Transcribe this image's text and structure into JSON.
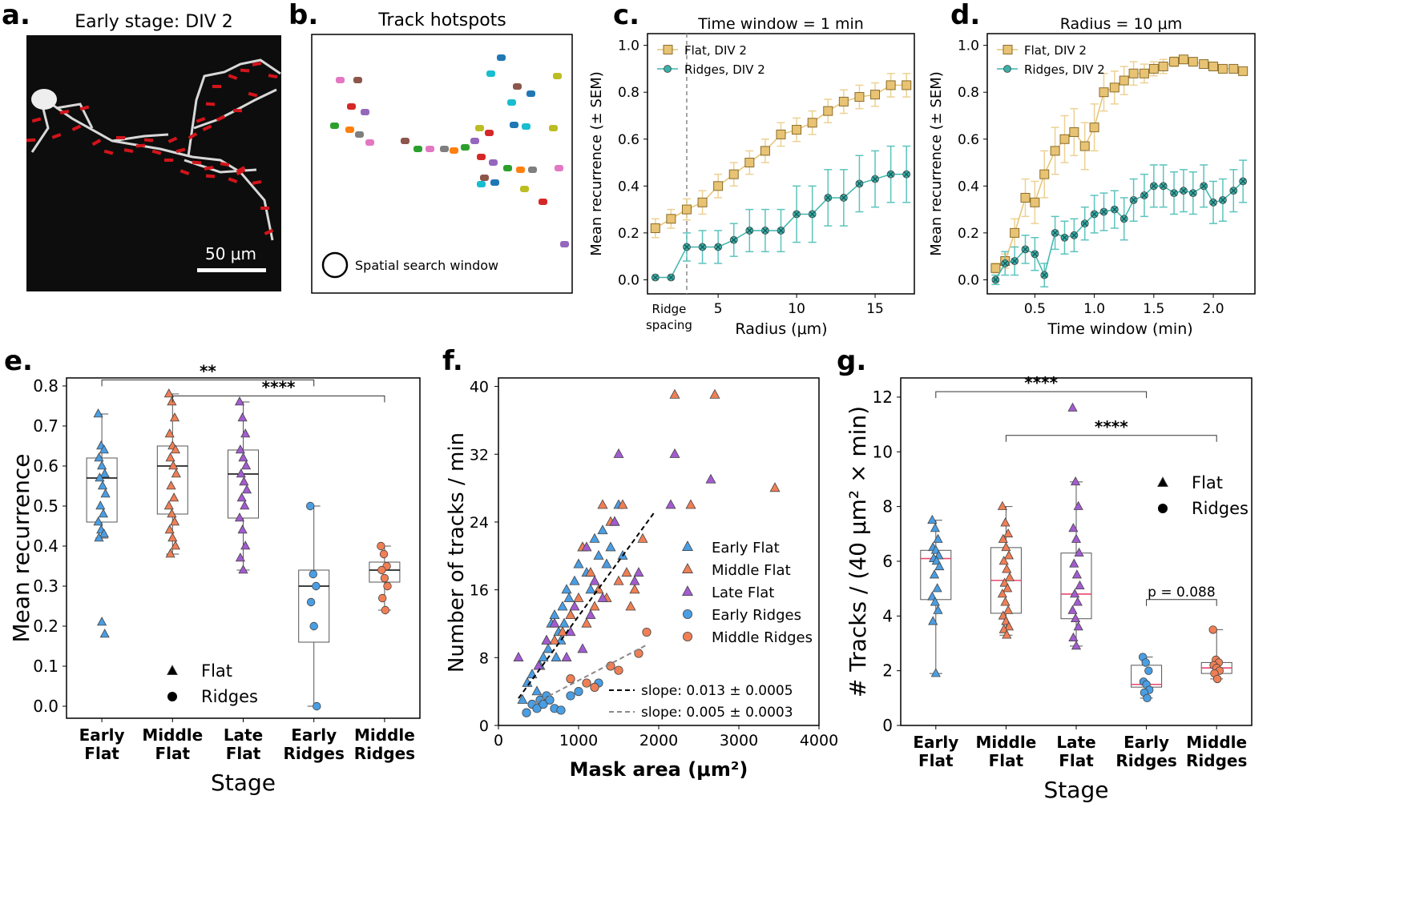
{
  "colors": {
    "flat_fill": "#e8c374",
    "flat_edge": "#8a6c2a",
    "flat_line": "#e6c372",
    "flat_err": "#ecd293",
    "ridge_fill": "#3ab0a8",
    "ridge_line": "#3db6ae",
    "ridge_err": "#5cc4bd",
    "early": "#4a9ee3",
    "middle": "#f07f55",
    "late": "#a35bd0",
    "median_g": "#e8476f"
  },
  "panel_a": {
    "label": "a.",
    "title": "Early stage: DIV 2",
    "scale": "50 μm"
  },
  "panel_b": {
    "label": "b.",
    "title": "Track hotspots",
    "legend": "Spatial search window",
    "hotspot_colors": [
      "#e377c2",
      "#8c564b",
      "#1f77b4",
      "#17becf",
      "#bcbd22",
      "#d62728",
      "#9467bd",
      "#2ca02c",
      "#ff7f0e",
      "#7f7f7f"
    ]
  },
  "chart_data": [
    {
      "id": "c",
      "label": "c.",
      "type": "line",
      "title": "Time window = 1 min",
      "xlabel": "Radius (μm)",
      "ylabel": "Mean recurrence (± SEM)",
      "xlim": [
        0.5,
        17.5
      ],
      "ylim": [
        -0.06,
        1.05
      ],
      "xticks": [
        5,
        10,
        15
      ],
      "yticks": [
        0.0,
        0.2,
        0.4,
        0.6,
        0.8,
        1.0
      ],
      "yticklabels": [
        "0.0",
        "0.2",
        "0.4",
        "0.6",
        "0.8",
        "1.0"
      ],
      "annotation": {
        "text1": "Ridge",
        "text2": "spacing",
        "x": 3
      },
      "series": [
        {
          "name": "Flat, DIV 2",
          "x": [
            1,
            2,
            3,
            4,
            5,
            6,
            7,
            8,
            9,
            10,
            11,
            12,
            13,
            14,
            15,
            16,
            17
          ],
          "y": [
            0.22,
            0.26,
            0.3,
            0.33,
            0.4,
            0.45,
            0.5,
            0.55,
            0.62,
            0.64,
            0.67,
            0.72,
            0.76,
            0.78,
            0.79,
            0.83,
            0.83
          ],
          "err": [
            0.04,
            0.04,
            0.045,
            0.05,
            0.05,
            0.05,
            0.05,
            0.05,
            0.05,
            0.05,
            0.05,
            0.05,
            0.05,
            0.05,
            0.05,
            0.05,
            0.05
          ]
        },
        {
          "name": "Ridges, DIV 2",
          "x": [
            1,
            2,
            3,
            4,
            5,
            6,
            7,
            8,
            9,
            10,
            11,
            12,
            13,
            14,
            15,
            16,
            17
          ],
          "y": [
            0.01,
            0.01,
            0.14,
            0.14,
            0.14,
            0.17,
            0.21,
            0.21,
            0.21,
            0.28,
            0.28,
            0.35,
            0.35,
            0.41,
            0.43,
            0.45,
            0.45
          ],
          "err": [
            0,
            0,
            0.06,
            0.07,
            0.07,
            0.07,
            0.09,
            0.09,
            0.09,
            0.12,
            0.12,
            0.12,
            0.12,
            0.12,
            0.12,
            0.12,
            0.12
          ]
        }
      ]
    },
    {
      "id": "d",
      "label": "d.",
      "type": "line",
      "title": "Radius = 10 μm",
      "xlabel": "Time window (min)",
      "ylabel": "Mean recurrence (± SEM)",
      "xlim": [
        0.1,
        2.35
      ],
      "ylim": [
        -0.06,
        1.05
      ],
      "xticks": [
        0.5,
        1.0,
        1.5,
        2.0
      ],
      "xticklabels": [
        "0.5",
        "1.0",
        "1.5",
        "2.0"
      ],
      "yticks": [
        0.0,
        0.2,
        0.4,
        0.6,
        0.8,
        1.0
      ],
      "yticklabels": [
        "0.0",
        "0.2",
        "0.4",
        "0.6",
        "0.8",
        "1.0"
      ],
      "series": [
        {
          "name": "Flat, DIV 2",
          "x": [
            0.17,
            0.25,
            0.33,
            0.42,
            0.5,
            0.58,
            0.67,
            0.75,
            0.83,
            0.92,
            1.0,
            1.08,
            1.17,
            1.25,
            1.33,
            1.42,
            1.5,
            1.58,
            1.67,
            1.75,
            1.83,
            1.92,
            2.0,
            2.08,
            2.17,
            2.25
          ],
          "y": [
            0.05,
            0.08,
            0.2,
            0.35,
            0.33,
            0.45,
            0.55,
            0.6,
            0.63,
            0.57,
            0.65,
            0.8,
            0.82,
            0.85,
            0.88,
            0.88,
            0.9,
            0.91,
            0.93,
            0.94,
            0.93,
            0.92,
            0.91,
            0.9,
            0.9,
            0.89
          ],
          "err": [
            0.02,
            0.03,
            0.06,
            0.08,
            0.09,
            0.1,
            0.1,
            0.1,
            0.1,
            0.1,
            0.1,
            0.08,
            0.07,
            0.06,
            0.05,
            0.04,
            0.03,
            0.03,
            0.02,
            0.01,
            0.01,
            0.01,
            0.01,
            0.01,
            0.01,
            0.01
          ]
        },
        {
          "name": "Ridges, DIV 2",
          "x": [
            0.17,
            0.25,
            0.33,
            0.42,
            0.5,
            0.58,
            0.67,
            0.75,
            0.83,
            0.92,
            1.0,
            1.08,
            1.17,
            1.25,
            1.33,
            1.42,
            1.5,
            1.58,
            1.67,
            1.75,
            1.83,
            1.92,
            2.0,
            2.08,
            2.17,
            2.25
          ],
          "y": [
            0.0,
            0.07,
            0.08,
            0.13,
            0.11,
            0.02,
            0.2,
            0.18,
            0.19,
            0.24,
            0.28,
            0.29,
            0.3,
            0.26,
            0.34,
            0.36,
            0.4,
            0.4,
            0.37,
            0.38,
            0.37,
            0.4,
            0.33,
            0.34,
            0.38,
            0.42
          ],
          "err": [
            0.02,
            0.05,
            0.06,
            0.06,
            0.07,
            0.05,
            0.07,
            0.07,
            0.07,
            0.07,
            0.08,
            0.08,
            0.08,
            0.09,
            0.09,
            0.09,
            0.09,
            0.09,
            0.09,
            0.09,
            0.09,
            0.09,
            0.09,
            0.09,
            0.09,
            0.09
          ]
        }
      ]
    },
    {
      "id": "e",
      "label": "e.",
      "type": "box",
      "xlabel": "Stage",
      "ylabel": "Mean recurrence",
      "ylim": [
        -0.03,
        0.82
      ],
      "yticks": [
        0.0,
        0.1,
        0.2,
        0.3,
        0.4,
        0.5,
        0.6,
        0.7,
        0.8
      ],
      "yticklabels": [
        "0.0",
        "0.1",
        "0.2",
        "0.3",
        "0.4",
        "0.5",
        "0.6",
        "0.7",
        "0.8"
      ],
      "categories": [
        [
          "Early",
          "Flat"
        ],
        [
          "Middle",
          "Flat"
        ],
        [
          "Late",
          "Flat"
        ],
        [
          "Early",
          "Ridges"
        ],
        [
          "Middle",
          "Ridges"
        ]
      ],
      "legend": {
        "flat": "Flat",
        "ridges": "Ridges"
      },
      "significance": [
        {
          "from": 0,
          "to": 3,
          "label": "**",
          "y": 0.815
        },
        {
          "from": 1,
          "to": 4,
          "label": "****",
          "y": 0.775
        }
      ],
      "boxes": [
        {
          "q1": 0.46,
          "median": 0.57,
          "q3": 0.62,
          "lo": 0.42,
          "hi": 0.73,
          "marker": "triangle",
          "color": "early",
          "points": [
            0.73,
            0.65,
            0.64,
            0.62,
            0.6,
            0.58,
            0.57,
            0.55,
            0.53,
            0.5,
            0.48,
            0.46,
            0.44,
            0.43,
            0.42,
            0.21,
            0.18
          ]
        },
        {
          "q1": 0.48,
          "median": 0.6,
          "q3": 0.65,
          "lo": 0.38,
          "hi": 0.78,
          "marker": "triangle",
          "color": "middle",
          "points": [
            0.78,
            0.76,
            0.72,
            0.68,
            0.65,
            0.64,
            0.62,
            0.6,
            0.58,
            0.55,
            0.52,
            0.5,
            0.48,
            0.46,
            0.44,
            0.42,
            0.4,
            0.38
          ]
        },
        {
          "q1": 0.47,
          "median": 0.58,
          "q3": 0.64,
          "lo": 0.34,
          "hi": 0.76,
          "marker": "triangle",
          "color": "late",
          "points": [
            0.76,
            0.72,
            0.68,
            0.64,
            0.62,
            0.6,
            0.58,
            0.56,
            0.54,
            0.52,
            0.5,
            0.47,
            0.44,
            0.4,
            0.37,
            0.34
          ]
        },
        {
          "q1": 0.16,
          "median": 0.3,
          "q3": 0.34,
          "lo": 0.0,
          "hi": 0.5,
          "marker": "circle",
          "color": "early",
          "points": [
            0.5,
            0.33,
            0.3,
            0.26,
            0.2,
            0.0
          ]
        },
        {
          "q1": 0.31,
          "median": 0.34,
          "q3": 0.36,
          "lo": 0.24,
          "hi": 0.4,
          "marker": "circle",
          "color": "middle",
          "points": [
            0.4,
            0.38,
            0.35,
            0.34,
            0.32,
            0.3,
            0.27,
            0.24
          ]
        }
      ]
    },
    {
      "id": "f",
      "label": "f.",
      "type": "scatter",
      "xlabel": "Mask area (μm²)",
      "ylabel": "Number of tracks / min",
      "xlim": [
        0,
        4000
      ],
      "ylim": [
        0,
        41
      ],
      "xticks": [
        0,
        1000,
        2000,
        3000,
        4000
      ],
      "xticklabels": [
        "0",
        "1000",
        "2000",
        "3000",
        "4000"
      ],
      "yticks": [
        0,
        8,
        16,
        24,
        32,
        40
      ],
      "yticklabels": [
        "0",
        "8",
        "16",
        "24",
        "32",
        "40"
      ],
      "fits": [
        {
          "label": "slope: 0.013 ± 0.0005",
          "x": [
            250,
            1950
          ],
          "y": [
            3.2,
            25.2
          ],
          "color": "#000000"
        },
        {
          "label": "slope: 0.005 ± 0.0003",
          "x": [
            450,
            1850
          ],
          "y": [
            2.6,
            9.5
          ],
          "color": "#8a8a8a"
        }
      ],
      "series": [
        {
          "name": "Early Flat",
          "marker": "triangle",
          "color": "early",
          "x": [
            300,
            360,
            420,
            480,
            520,
            560,
            600,
            620,
            660,
            700,
            720,
            750,
            780,
            800,
            820,
            850,
            880,
            900,
            950,
            1000,
            1050,
            1100,
            1150,
            1200,
            1250,
            1300,
            1350,
            1400,
            1450,
            1500,
            1550
          ],
          "y": [
            3,
            5,
            6,
            4,
            7,
            8,
            10,
            9,
            12,
            13,
            8,
            11,
            10,
            14,
            12,
            16,
            15,
            13,
            17,
            19,
            21,
            18,
            16,
            22,
            20,
            23,
            19,
            21,
            24,
            26,
            20
          ]
        },
        {
          "name": "Middle Flat",
          "marker": "triangle",
          "color": "middle",
          "x": [
            700,
            800,
            900,
            1000,
            1050,
            1100,
            1150,
            1200,
            1250,
            1300,
            1350,
            1400,
            1500,
            1550,
            1600,
            1650,
            1700,
            1800,
            2200,
            2400,
            2700,
            3450
          ],
          "y": [
            10,
            11,
            13,
            15,
            21,
            12,
            18,
            14,
            16,
            26,
            15,
            24,
            17,
            26,
            18,
            14,
            16,
            22,
            39,
            26,
            39,
            28
          ]
        },
        {
          "name": "Late Flat",
          "marker": "triangle",
          "color": "late",
          "x": [
            250,
            500,
            600,
            700,
            850,
            900,
            950,
            1050,
            1100,
            1150,
            1200,
            1300,
            1450,
            1500,
            1700,
            1750,
            2200,
            2650,
            2150
          ],
          "y": [
            8,
            7,
            10,
            12,
            8,
            11,
            14,
            9,
            21,
            13,
            17,
            15,
            24,
            32,
            17,
            18,
            32,
            29,
            26
          ]
        },
        {
          "name": "Early Ridges",
          "marker": "circle",
          "color": "early",
          "x": [
            350,
            420,
            480,
            520,
            560,
            600,
            640,
            700,
            780,
            900,
            1000,
            1250
          ],
          "y": [
            1.5,
            2.5,
            2,
            3,
            2.5,
            3.5,
            3,
            2,
            1.8,
            3.5,
            4,
            5
          ]
        },
        {
          "name": "Middle Ridges",
          "marker": "circle",
          "color": "middle",
          "x": [
            900,
            1100,
            1200,
            1400,
            1500,
            1750,
            1850
          ],
          "y": [
            5.5,
            5,
            4.5,
            7,
            6.5,
            8.5,
            11
          ]
        }
      ]
    },
    {
      "id": "g",
      "label": "g.",
      "type": "box",
      "xlabel": "Stage",
      "ylabel": "# Tracks / (40 μm² × min)",
      "ylim": [
        0,
        12.7
      ],
      "yticks": [
        0,
        2,
        4,
        6,
        8,
        10,
        12
      ],
      "yticklabels": [
        "0",
        "2",
        "4",
        "6",
        "8",
        "10",
        "12"
      ],
      "categories": [
        [
          "Early",
          "Flat"
        ],
        [
          "Middle",
          "Flat"
        ],
        [
          "Late",
          "Flat"
        ],
        [
          "Early",
          "Ridges"
        ],
        [
          "Middle",
          "Ridges"
        ]
      ],
      "legend": {
        "flat": "Flat",
        "ridges": "Ridges"
      },
      "significance": [
        {
          "from": 0,
          "to": 3,
          "label": "****",
          "y": 12.2
        },
        {
          "from": 1,
          "to": 4,
          "label": "****",
          "y": 10.6
        },
        {
          "from": 3,
          "to": 4,
          "label": "p = 0.088",
          "y": 4.6
        }
      ],
      "boxes": [
        {
          "q1": 4.6,
          "median": 6.1,
          "q3": 6.4,
          "lo": 1.9,
          "hi": 7.5,
          "marker": "triangle",
          "color": "early",
          "points": [
            7.5,
            7.2,
            6.8,
            6.5,
            6.4,
            6.2,
            6.1,
            6.0,
            5.8,
            5.5,
            5.0,
            4.7,
            4.5,
            4.2,
            3.8,
            1.9
          ]
        },
        {
          "q1": 4.1,
          "median": 5.3,
          "q3": 6.5,
          "lo": 3.3,
          "hi": 8.0,
          "marker": "triangle",
          "color": "middle",
          "points": [
            8.0,
            7.4,
            7.0,
            6.8,
            6.5,
            6.2,
            6.0,
            5.7,
            5.4,
            5.2,
            5.0,
            4.8,
            4.5,
            4.2,
            4.0,
            3.8,
            3.6,
            3.5,
            3.3
          ]
        },
        {
          "q1": 3.9,
          "median": 4.8,
          "q3": 6.3,
          "lo": 2.9,
          "hi": 8.9,
          "marker": "triangle",
          "color": "late",
          "points": [
            11.6,
            8.9,
            8.0,
            7.2,
            6.8,
            6.3,
            5.9,
            5.5,
            5.1,
            4.8,
            4.5,
            4.2,
            3.9,
            3.6,
            3.2,
            2.9
          ]
        },
        {
          "q1": 1.4,
          "median": 1.5,
          "q3": 2.2,
          "lo": 1.0,
          "hi": 2.5,
          "marker": "circle",
          "color": "early",
          "points": [
            2.5,
            2.3,
            2.0,
            1.6,
            1.5,
            1.3,
            1.2,
            1.0
          ]
        },
        {
          "q1": 1.9,
          "median": 2.1,
          "q3": 2.3,
          "lo": 1.7,
          "hi": 3.5,
          "marker": "circle",
          "color": "middle",
          "points": [
            3.5,
            2.4,
            2.3,
            2.2,
            2.1,
            2.0,
            1.9,
            1.7
          ]
        }
      ]
    }
  ]
}
